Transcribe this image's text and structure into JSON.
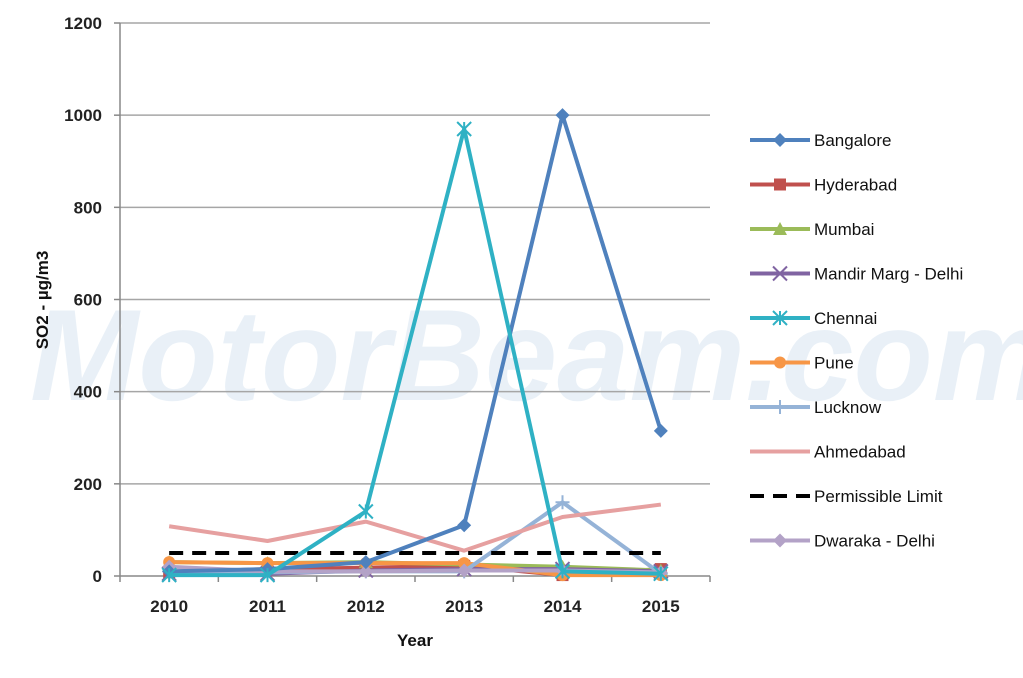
{
  "chart_data": {
    "type": "line",
    "xlabel": "Year",
    "ylabel": "SO2 - µg/m3",
    "ylim": [
      0,
      1200
    ],
    "yticks": [
      0,
      200,
      400,
      600,
      800,
      1000,
      1200
    ],
    "categories": [
      "2010",
      "2011",
      "2012",
      "2013",
      "2014",
      "2015"
    ],
    "grid": "horizontal",
    "legend_position": "right",
    "watermark": "MotorBeam.com",
    "series": [
      {
        "name": "Bangalore",
        "color": "#4f81bd",
        "marker": "diamond",
        "dash": false,
        "values": [
          10,
          15,
          30,
          110,
          1000,
          315
        ]
      },
      {
        "name": "Hyderabad",
        "color": "#c0504d",
        "marker": "square",
        "dash": false,
        "values": [
          8,
          15,
          18,
          22,
          2,
          15
        ]
      },
      {
        "name": "Mumbai",
        "color": "#9bbb59",
        "marker": "triangle",
        "dash": false,
        "values": [
          30,
          28,
          30,
          25,
          20,
          12
        ]
      },
      {
        "name": "Mandir Marg - Delhi",
        "color": "#8064a2",
        "marker": "x",
        "dash": false,
        "values": [
          5,
          5,
          12,
          15,
          15,
          10
        ]
      },
      {
        "name": "Chennai",
        "color": "#2fb1c4",
        "marker": "star",
        "dash": false,
        "values": [
          2,
          2,
          140,
          970,
          10,
          5
        ]
      },
      {
        "name": "Pune",
        "color": "#f79646",
        "marker": "circle",
        "dash": false,
        "values": [
          30,
          28,
          28,
          28,
          2,
          2
        ]
      },
      {
        "name": "Lucknow",
        "color": "#95b3d7",
        "marker": "plus",
        "dash": false,
        "values": [
          10,
          8,
          10,
          10,
          160,
          5
        ]
      },
      {
        "name": "Ahmedabad",
        "color": "#e6a0a0",
        "marker": "none",
        "dash": false,
        "values": [
          108,
          76,
          118,
          55,
          128,
          155
        ]
      },
      {
        "name": "Permissible Limit",
        "color": "#000000",
        "marker": "none",
        "dash": true,
        "values": [
          50,
          50,
          50,
          50,
          50,
          50
        ]
      },
      {
        "name": "Dwaraka - Delhi",
        "color": "#b3a2c7",
        "marker": "diamond",
        "dash": false,
        "values": [
          20,
          10,
          10,
          12,
          12,
          8
        ]
      }
    ]
  }
}
